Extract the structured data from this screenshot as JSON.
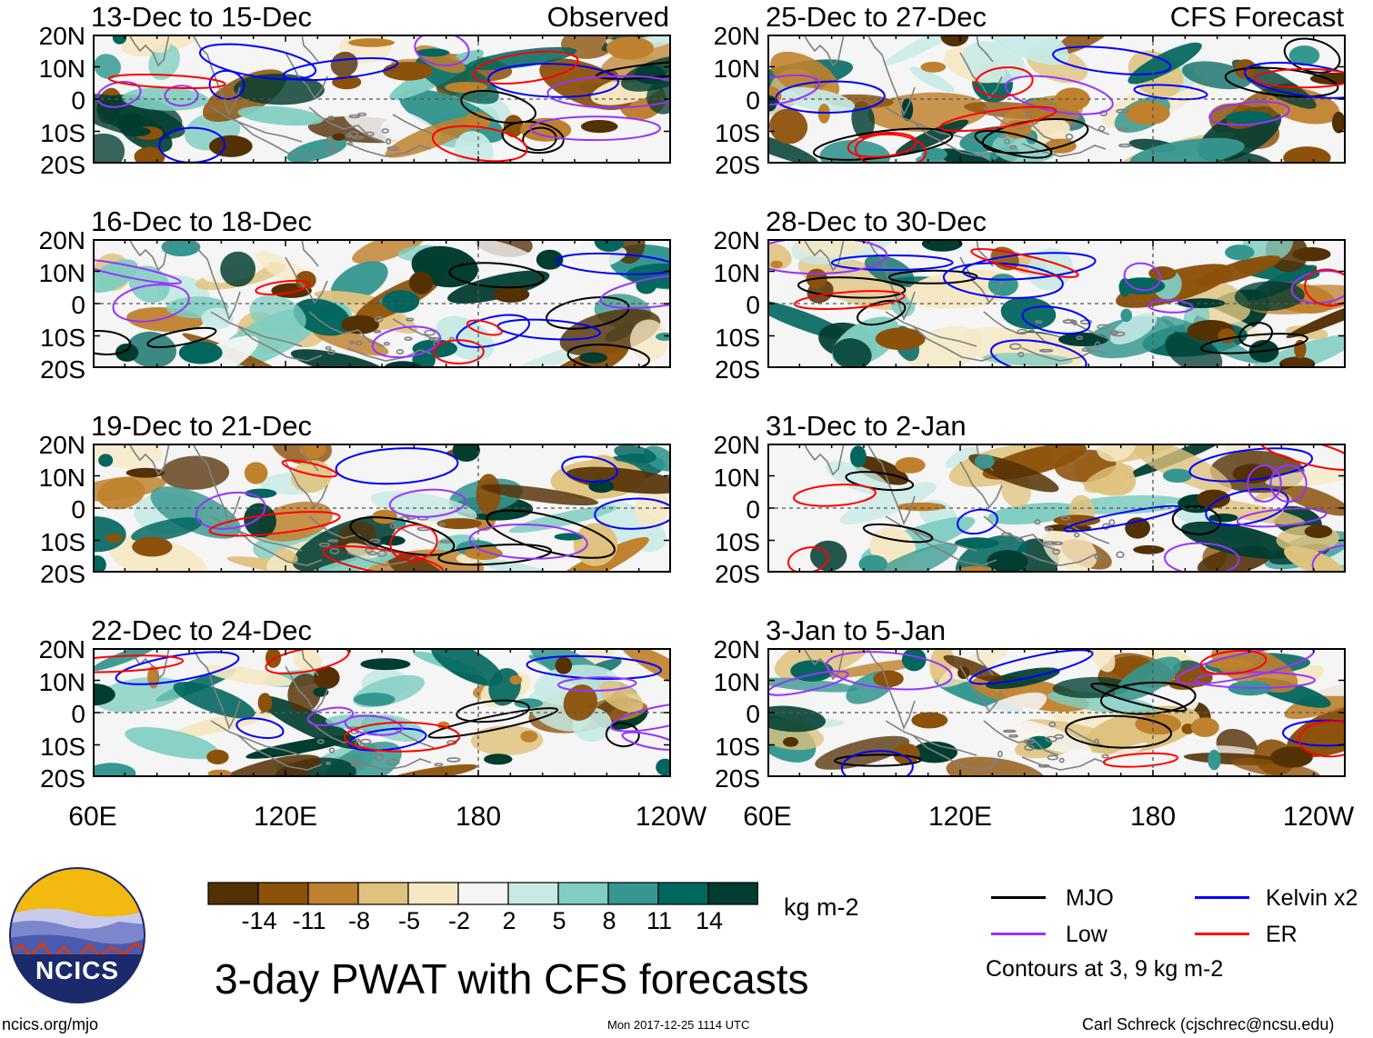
{
  "title": "3-day PWAT with CFS forecasts",
  "logo": {
    "text": "NCICS"
  },
  "footer": {
    "left": "ncics.org/mjo",
    "center": "Mon 2017-12-25 1114 UTC",
    "right": "Carl Schreck (cjschrec@ncsu.edu)"
  },
  "panels": [
    {
      "title": "13-Dec to 15-Dec",
      "tag": "Observed"
    },
    {
      "title": "25-Dec to 27-Dec",
      "tag": "CFS Forecast"
    },
    {
      "title": "16-Dec to 18-Dec",
      "tag": ""
    },
    {
      "title": "28-Dec to 30-Dec",
      "tag": ""
    },
    {
      "title": "19-Dec to 21-Dec",
      "tag": ""
    },
    {
      "title": "31-Dec to 2-Jan",
      "tag": ""
    },
    {
      "title": "22-Dec to 24-Dec",
      "tag": ""
    },
    {
      "title": "3-Jan to 5-Jan",
      "tag": ""
    }
  ],
  "colors": {
    "mjo": "#000000",
    "kelvin": "#0000ff",
    "low": "#9933ff",
    "er": "#ff0000",
    "coast": "#808080"
  },
  "chart_data": {
    "type": "heatmap",
    "title": "3-day PWAT with CFS forecasts",
    "variable": "Precipitable water anomaly",
    "units": "kg m-2",
    "x_ticks": [
      "60E",
      "120E",
      "180",
      "120W"
    ],
    "x_range_deg": [
      60,
      240
    ],
    "y_ticks": [
      "20N",
      "10N",
      "0",
      "10S",
      "20S"
    ],
    "y_range_deg": [
      -20,
      20
    ],
    "colorbar": {
      "labels": [
        "-14",
        "-11",
        "-8",
        "-5",
        "-2",
        "2",
        "5",
        "8",
        "11",
        "14"
      ],
      "colors": [
        "#543005",
        "#8c510a",
        "#bf812d",
        "#dfc27d",
        "#f6e8c3",
        "#f5f5f5",
        "#c7eae5",
        "#80cdc1",
        "#35978f",
        "#01665e",
        "#003c30"
      ]
    },
    "legend": {
      "mjo": "MJO",
      "kelvin": "Kelvin x2",
      "low": "Low",
      "er": "ER",
      "contours": "Contours at 3, 9 kg m-2"
    }
  }
}
